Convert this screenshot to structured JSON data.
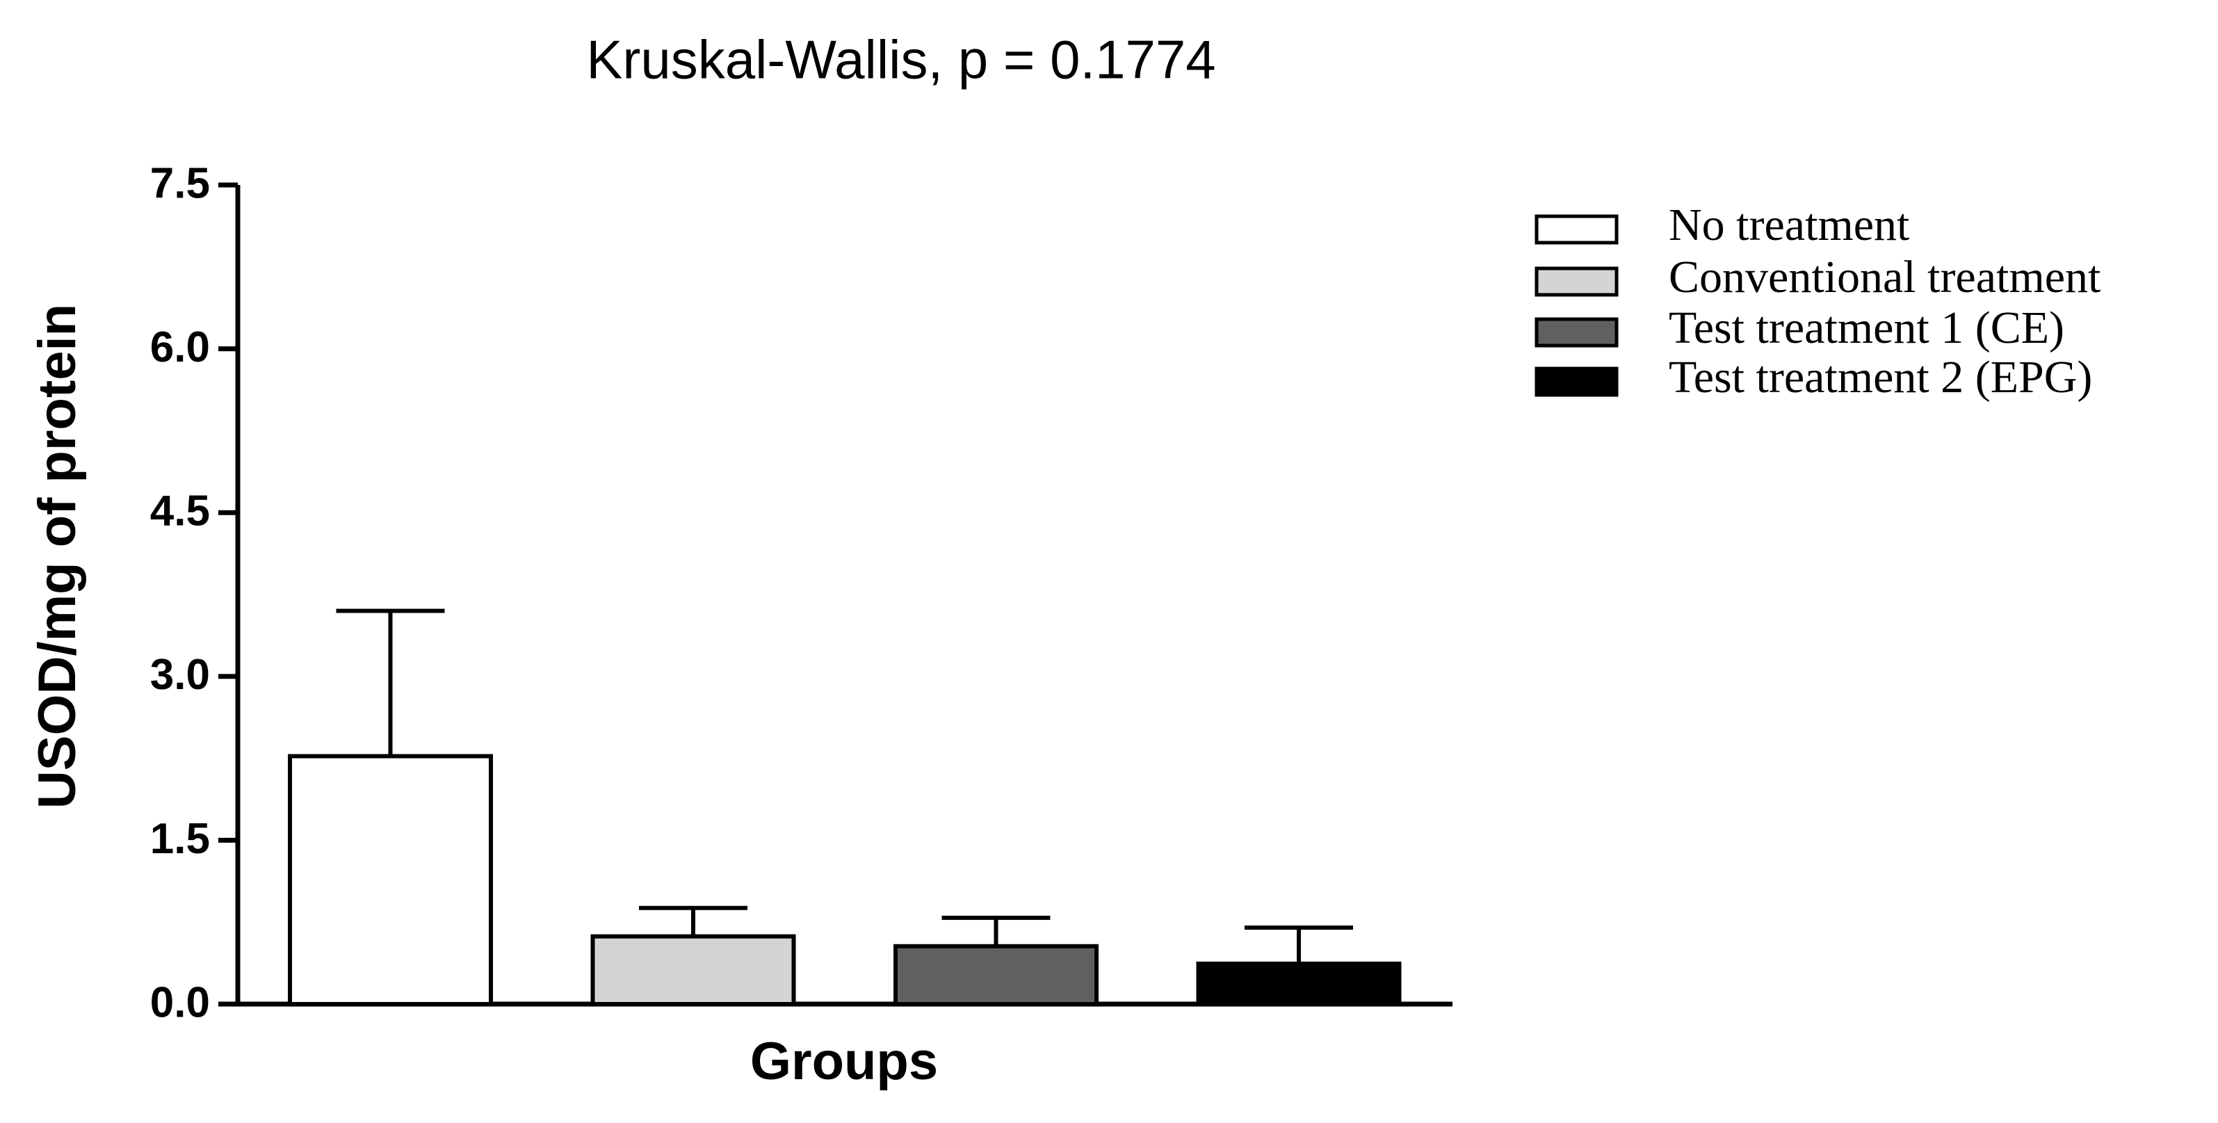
{
  "chart_data": {
    "type": "bar",
    "title": "Kruskal-Wallis, p = 0.1774",
    "x_label": "Groups",
    "y_label": "USOD/mg of protein",
    "ylim": [
      0,
      7.5
    ],
    "yticks": [
      {
        "value": 0,
        "label": "0.0"
      },
      1.5,
      {
        "value": 3,
        "label": "3.0"
      },
      4.5,
      {
        "value": 6,
        "label": "6.0"
      },
      7.5
    ],
    "series": [
      {
        "name": "No treatment",
        "color": "#ffffff",
        "values": [
          2.27
        ],
        "errors": [
          1.33
        ]
      },
      {
        "name": "Conventional treatment",
        "color": "#d4d4d4",
        "values": [
          0.62
        ],
        "errors": [
          0.26
        ]
      },
      {
        "name": "Test treatment 1 (CE)",
        "color": "#606060",
        "values": [
          0.53
        ],
        "errors": [
          0.26
        ]
      },
      {
        "name": "Test treatment 2 (EPG)",
        "color": "#000000",
        "values": [
          0.37
        ],
        "errors": [
          0.33
        ]
      }
    ],
    "legend": "right"
  }
}
